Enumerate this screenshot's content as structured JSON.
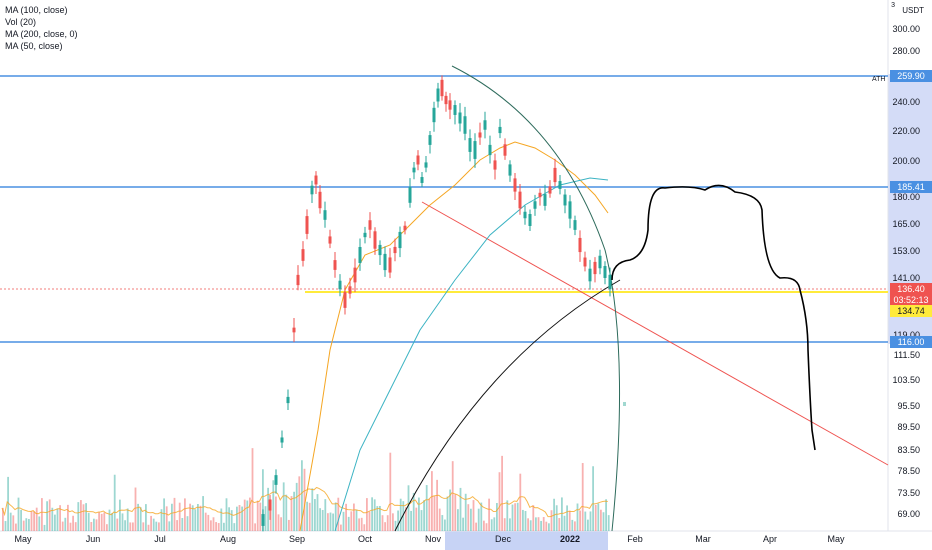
{
  "legend": [
    "MA (100, close)",
    "Vol (20)",
    "MA (200, close, 0)",
    "MA (50, close)"
  ],
  "currency_label": "USDT",
  "scale_marker": "3",
  "ath_label": "ATH",
  "axis": {
    "y_ticks": [
      "300.00",
      "280.00",
      "240.00",
      "220.00",
      "200.00",
      "180.00",
      "165.00",
      "153.00",
      "141.00",
      "119.00",
      "111.50",
      "103.50",
      "95.50",
      "89.50",
      "83.50",
      "78.50",
      "73.50",
      "69.00"
    ],
    "x_ticks": [
      "May",
      "Jun",
      "Jul",
      "Aug",
      "Sep",
      "Oct",
      "Nov",
      "Dec",
      "2022",
      "Feb",
      "Mar",
      "Apr",
      "May"
    ]
  },
  "price_tags": {
    "ath": "259.90",
    "resistance": "185.41",
    "last": "136.40",
    "countdown": "03:52:13",
    "support_yellow": "134.74",
    "support": "116.00"
  },
  "colors": {
    "up": "#26a69a",
    "down": "#ef5350",
    "ma_orange": "#f5a623",
    "ma_teal": "#3bb3c3",
    "hline_blue": "#4a90e2",
    "yellow": "#ffeb3b",
    "trend_red": "#ef5350",
    "highlight": "#c7d3f5"
  },
  "chart_data": {
    "type": "candlestick",
    "ylim": [
      65,
      305
    ],
    "scale": "log",
    "horizontal_levels": [
      259.9,
      185.41,
      134.74,
      116.0
    ],
    "last_price": 136.4
  }
}
